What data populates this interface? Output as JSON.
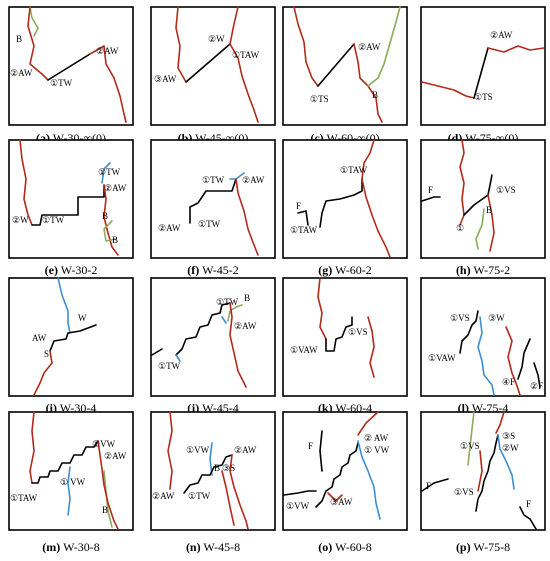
{
  "panels": [
    {
      "letter": "a",
      "name": "W-30-∞(0)",
      "labels": [
        "B",
        "②AW",
        "①TW",
        "②AW"
      ]
    },
    {
      "letter": "b",
      "name": "W-45-∞(0)",
      "labels": [
        "②W",
        "①TAW",
        "③AW"
      ]
    },
    {
      "letter": "c",
      "name": "W-60-∞(0)",
      "labels": [
        "②AW",
        "①TS",
        "B"
      ]
    },
    {
      "letter": "d",
      "name": "W-75-∞(0)",
      "labels": [
        "②AW",
        "①TS"
      ]
    },
    {
      "letter": "e",
      "name": "W-30-2",
      "labels": [
        "①TW",
        "②AW",
        "②W",
        "①TW",
        "B",
        "B"
      ]
    },
    {
      "letter": "f",
      "name": "W-45-2",
      "labels": [
        "①TW",
        "②AW",
        "②AW",
        "①TW"
      ]
    },
    {
      "letter": "g",
      "name": "W-60-2",
      "labels": [
        "①TAW",
        "F",
        "①TAW"
      ]
    },
    {
      "letter": "h",
      "name": "W-75-2",
      "labels": [
        "F",
        "①VS",
        "B",
        "①"
      ]
    },
    {
      "letter": "i",
      "name": "W-30-4",
      "labels": [
        "W",
        "AW",
        "S"
      ]
    },
    {
      "letter": "j",
      "name": "W-45-4",
      "labels": [
        "①TW",
        "B",
        "②AW",
        "①TW"
      ]
    },
    {
      "letter": "k",
      "name": "W-60-4",
      "labels": [
        "①VS",
        "①VAW"
      ]
    },
    {
      "letter": "l",
      "name": "W-75-4",
      "labels": [
        "①VS",
        "③W",
        "①VAW",
        "④F",
        "②F"
      ]
    },
    {
      "letter": "m",
      "name": "W-30-8",
      "labels": [
        "①VW",
        "②AW",
        "① VW",
        "①TAW",
        "B"
      ]
    },
    {
      "letter": "n",
      "name": "W-45-8",
      "labels": [
        "①VW",
        "②AW",
        "B",
        "③S",
        "②AW",
        "①TW"
      ]
    },
    {
      "letter": "o",
      "name": "W-60-8",
      "labels": [
        "F",
        "② AW",
        "① VW",
        "①VW",
        "③AW"
      ]
    },
    {
      "letter": "p",
      "name": "W-75-8",
      "labels": [
        "③S",
        "①VS",
        "②W",
        "F",
        "①VS",
        "F"
      ]
    }
  ]
}
